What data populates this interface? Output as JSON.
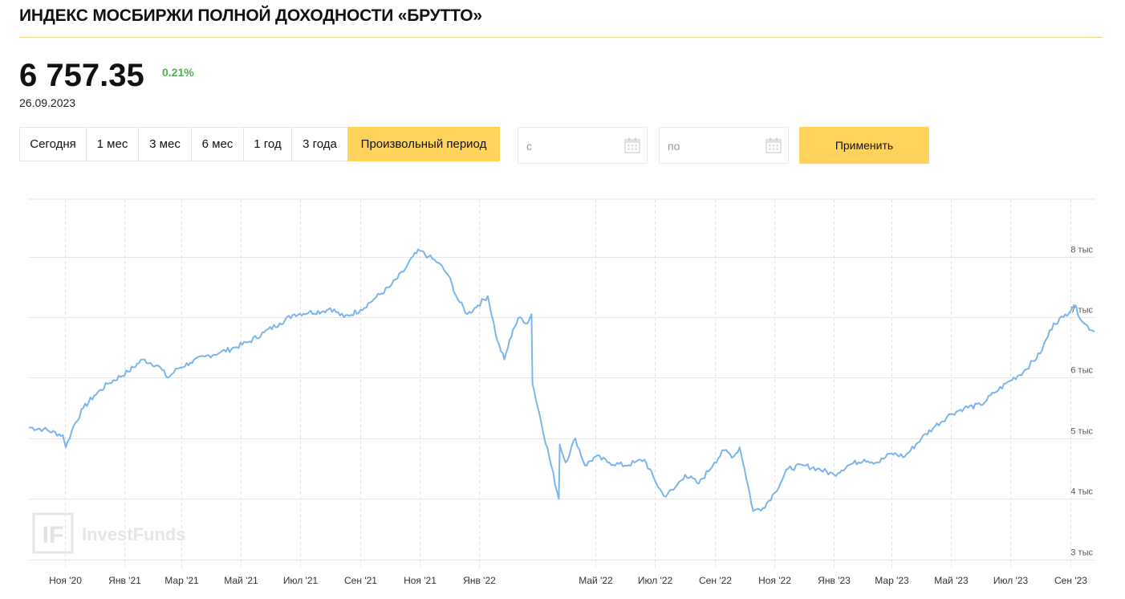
{
  "header": {
    "title": "ИНДЕКС МОСБИРЖИ ПОЛНОЙ ДОХОДНОСТИ «БРУТТО»",
    "price": "6 757.35",
    "change": "0.21%",
    "date": "26.09.2023"
  },
  "periods": [
    {
      "label": "Сегодня",
      "active": false
    },
    {
      "label": "1 мес",
      "active": false
    },
    {
      "label": "3 мес",
      "active": false
    },
    {
      "label": "6 мес",
      "active": false
    },
    {
      "label": "1 год",
      "active": false
    },
    {
      "label": "3 года",
      "active": false
    },
    {
      "label": "Произвольный период",
      "active": true
    }
  ],
  "date_from": {
    "placeholder": "с"
  },
  "date_to": {
    "placeholder": "по"
  },
  "apply_label": "Применить",
  "watermark": {
    "text": "InvestFunds",
    "logo": "IF"
  },
  "colors": {
    "accent": "#ffd35c",
    "line": "#7cb5ec",
    "positive": "#4caf50"
  },
  "chart_data": {
    "type": "line",
    "title": "",
    "xlabel": "",
    "ylabel": "",
    "x_ticks": [
      "Ноя '20",
      "Янв '21",
      "Мар '21",
      "Май '21",
      "Июл '21",
      "Сен '21",
      "Ноя '21",
      "Янв '22",
      "Май '22",
      "Июл '22",
      "Сен '22",
      "Ноя '22",
      "Янв '23",
      "Мар '23",
      "Май '23",
      "Июл '23",
      "Сен '23"
    ],
    "y_ticks": [
      "3 тыс",
      "4 тыс",
      "5 тыс",
      "6 тыс",
      "7 тыс",
      "8 тыс"
    ],
    "y_tick_values": [
      3000,
      4000,
      5000,
      6000,
      7000,
      8000
    ],
    "ylim": [
      2850,
      8950
    ],
    "xlim": [
      "2020-09-25",
      "2023-09-26"
    ],
    "grid": true,
    "legend": "none",
    "series": [
      {
        "name": "",
        "x": [
          "2020-09-25",
          "2020-10-10",
          "2020-10-30",
          "2020-11-02",
          "2020-11-10",
          "2020-11-20",
          "2020-12-01",
          "2020-12-15",
          "2021-01-05",
          "2021-01-20",
          "2021-02-05",
          "2021-02-15",
          "2021-02-25",
          "2021-03-10",
          "2021-03-25",
          "2021-04-10",
          "2021-04-25",
          "2021-05-10",
          "2021-05-25",
          "2021-06-10",
          "2021-06-25",
          "2021-07-10",
          "2021-07-25",
          "2021-08-01",
          "2021-08-15",
          "2021-09-01",
          "2021-09-15",
          "2021-10-01",
          "2021-10-15",
          "2021-10-25",
          "2021-11-01",
          "2021-11-10",
          "2021-11-20",
          "2021-11-30",
          "2021-12-10",
          "2021-12-20",
          "2021-12-31",
          "2022-01-10",
          "2022-01-20",
          "2022-01-27",
          "2022-02-05",
          "2022-02-12",
          "2022-02-20",
          "2022-02-24",
          "2022-02-25",
          "2022-03-24",
          "2022-03-25",
          "2022-03-31",
          "2022-04-10",
          "2022-04-20",
          "2022-05-01",
          "2022-05-15",
          "2022-05-31",
          "2022-06-10",
          "2022-06-20",
          "2022-07-01",
          "2022-07-10",
          "2022-07-20",
          "2022-08-01",
          "2022-08-15",
          "2022-08-31",
          "2022-09-10",
          "2022-09-20",
          "2022-09-26",
          "2022-10-01",
          "2022-10-10",
          "2022-10-20",
          "2022-11-01",
          "2022-11-15",
          "2022-12-01",
          "2022-12-15",
          "2023-01-01",
          "2023-01-15",
          "2023-02-01",
          "2023-02-15",
          "2023-03-01",
          "2023-03-15",
          "2023-04-01",
          "2023-04-15",
          "2023-05-01",
          "2023-05-15",
          "2023-06-01",
          "2023-06-15",
          "2023-07-01",
          "2023-07-15",
          "2023-08-01",
          "2023-08-15",
          "2023-08-25",
          "2023-09-05",
          "2023-09-15",
          "2023-09-26"
        ],
        "y": [
          5180,
          5150,
          5050,
          4850,
          5200,
          5500,
          5700,
          5900,
          6100,
          6300,
          6200,
          6000,
          6150,
          6250,
          6350,
          6420,
          6500,
          6600,
          6750,
          6900,
          7050,
          7080,
          7100,
          7150,
          7000,
          7120,
          7300,
          7500,
          7750,
          8000,
          8100,
          8000,
          7900,
          7700,
          7300,
          7050,
          7200,
          7350,
          6600,
          6300,
          6800,
          7000,
          6900,
          7050,
          5900,
          4000,
          4900,
          4600,
          5000,
          4550,
          4700,
          4600,
          4550,
          4600,
          4650,
          4300,
          4050,
          4150,
          4400,
          4250,
          4600,
          4800,
          4700,
          4850,
          4500,
          3800,
          3850,
          4100,
          4500,
          4550,
          4500,
          4400,
          4550,
          4650,
          4600,
          4750,
          4700,
          5000,
          5200,
          5400,
          5500,
          5550,
          5750,
          5950,
          6100,
          6400,
          6900,
          7000,
          7200,
          6900,
          6760
        ]
      }
    ]
  }
}
